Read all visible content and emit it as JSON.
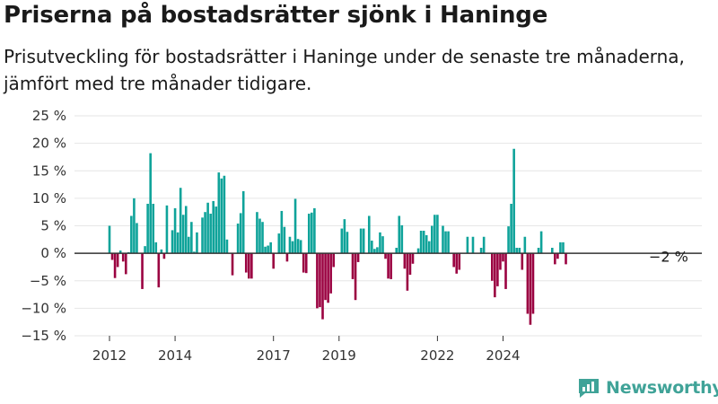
{
  "title": "Priserna på bostadsrätter sjönk i Haninge",
  "subtitle": "Prisutveckling för bostadsrätter i Haninge under de senaste tre månaderna, jämfört med tre månader tidigare.",
  "brand": "Newsworthy",
  "colors": {
    "positive": "#0fa39a",
    "negative": "#9b0241",
    "brand": "#40a398"
  },
  "chart_data": {
    "type": "bar",
    "title": "Priserna på bostadsrätter sjönk i Haninge",
    "ylim": [
      -15,
      25
    ],
    "y_ticks": [
      -15,
      -10,
      -5,
      0,
      5,
      10,
      15,
      20,
      25
    ],
    "y_tick_labels": [
      "−15 %",
      "−10 %",
      "−5 %",
      "0 %",
      "5 %",
      "10 %",
      "15 %",
      "20 %",
      "25 %"
    ],
    "x_start": "2012-01",
    "x_ticks": [
      {
        "label": "2012",
        "month": "2012-01"
      },
      {
        "label": "2014",
        "month": "2014-01"
      },
      {
        "label": "2017",
        "month": "2017-01"
      },
      {
        "label": "2019",
        "month": "2019-01"
      },
      {
        "label": "2022",
        "month": "2022-01"
      },
      {
        "label": "2024",
        "month": "2024-01"
      }
    ],
    "annotation": "−2 %",
    "grid": true,
    "series": [
      {
        "values": [
          5,
          -1.2,
          -4.5,
          -2.5,
          0.5,
          -1.5,
          -3.8,
          0.2,
          6.8,
          10,
          5.5,
          0,
          -6.5,
          1.3,
          9,
          18.2,
          9,
          2,
          -6.2,
          0.7,
          -1,
          8.7,
          0,
          4.2,
          8.2,
          3.8,
          11.9,
          7,
          8.6,
          3,
          5.7,
          0.3,
          3.8,
          0,
          6.5,
          7.5,
          9.2,
          7.2,
          9.5,
          8.5,
          14.7,
          13.6,
          14.1,
          2.5,
          0,
          -4,
          0,
          5.4,
          7.3,
          11.3,
          -3.5,
          -4.6,
          -4.6,
          0,
          7.5,
          6.3,
          5.7,
          1.2,
          1.4,
          2,
          -2.8,
          0,
          3.6,
          7.7,
          4.8,
          -1.5,
          3,
          2.2,
          9.9,
          2.6,
          2.4,
          -3.5,
          -3.6,
          7.2,
          7.4,
          8.2,
          -10,
          -9.8,
          -12,
          -8.5,
          -9,
          -7.3,
          -2.5,
          0,
          0,
          4.5,
          6.2,
          3.9,
          0,
          -4.7,
          -8.5,
          -1.6,
          4.5,
          4.5,
          0,
          6.8,
          2.3,
          0.8,
          1.1,
          3.8,
          3.1,
          -1,
          -4.6,
          -4.7,
          0,
          1,
          6.8,
          5.1,
          -2.8,
          -6.8,
          -3.9,
          -1.9,
          0,
          0.9,
          4.1,
          4.1,
          3.3,
          2.2,
          5,
          7,
          7,
          0,
          5,
          4,
          4,
          0,
          -2.5,
          -3.7,
          -3,
          0,
          0,
          3,
          0,
          3,
          0,
          0,
          1,
          3,
          0,
          0,
          -5,
          -8,
          -6,
          -3,
          -1.5,
          -6.5,
          4.9,
          9,
          19,
          1,
          1,
          -3,
          3,
          -11,
          -13,
          -11,
          0,
          1,
          4,
          0,
          0,
          0,
          1,
          -2,
          -1,
          2,
          2,
          -2
        ]
      }
    ]
  }
}
